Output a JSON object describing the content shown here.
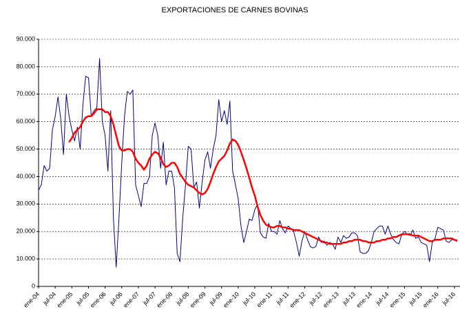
{
  "chart_data": {
    "type": "line",
    "title": "EXPORTACIONES DE CARNES BOVINAS",
    "categories": [
      "ene-04",
      null,
      null,
      null,
      null,
      null,
      "jul-04",
      null,
      null,
      null,
      null,
      null,
      "ene-05",
      null,
      null,
      null,
      null,
      null,
      "jul-05",
      null,
      null,
      null,
      null,
      null,
      "ene-06",
      null,
      null,
      null,
      null,
      null,
      "jul-06",
      null,
      null,
      null,
      null,
      null,
      "ene-07",
      null,
      null,
      null,
      null,
      null,
      "jul-07",
      null,
      null,
      null,
      null,
      null,
      "ene-08",
      null,
      null,
      null,
      null,
      null,
      "jul-08",
      null,
      null,
      null,
      null,
      null,
      "ene-09",
      null,
      null,
      null,
      null,
      null,
      "jul-09",
      null,
      null,
      null,
      null,
      null,
      "ene-10",
      null,
      null,
      null,
      null,
      null,
      "jul-10",
      null,
      null,
      null,
      null,
      null,
      "ene-11",
      null,
      null,
      null,
      null,
      null,
      "jul-11",
      null,
      null,
      null,
      null,
      null,
      "ene-12",
      null,
      null,
      null,
      null,
      null,
      "jul-12",
      null,
      null,
      null,
      null,
      null,
      "ene-13",
      null,
      null,
      null,
      null,
      null,
      "jul-13",
      null,
      null,
      null,
      null,
      null,
      "ene-14",
      null,
      null,
      null,
      null,
      null,
      "jul-14",
      null,
      null,
      null,
      null,
      null,
      "ene-15",
      null,
      null,
      null,
      null,
      null,
      "jul-15",
      null,
      null,
      null,
      null,
      null,
      "ene-16",
      null,
      null,
      null,
      null,
      null,
      "jul-16",
      null
    ],
    "series": [
      {
        "color": "#000080",
        "width": 1,
        "values": [
          35000,
          37000,
          44000,
          42000,
          43000,
          57000,
          62000,
          69000,
          61000,
          48000,
          70000,
          62000,
          57000,
          53000,
          58000,
          50000,
          66000,
          76500,
          76000,
          62000,
          64000,
          65000,
          83000,
          60000,
          55000,
          42000,
          64000,
          25000,
          7000,
          25000,
          45000,
          62000,
          71000,
          70000,
          71500,
          37000,
          33000,
          29000,
          37500,
          37500,
          40000,
          55000,
          59500,
          55000,
          43000,
          52500,
          37000,
          42000,
          42000,
          36000,
          12000,
          9000,
          25000,
          37000,
          51000,
          50000,
          36000,
          38000,
          28500,
          38000,
          46000,
          49000,
          43000,
          50000,
          55000,
          68000,
          60000,
          64000,
          59000,
          67500,
          42000,
          37000,
          32000,
          22000,
          16000,
          20000,
          24500,
          24000,
          28000,
          30000,
          19500,
          18000,
          17500,
          23000,
          20000,
          20000,
          19000,
          24000,
          21000,
          19500,
          22000,
          21000,
          20000,
          16000,
          11000,
          16500,
          20000,
          17000,
          14500,
          14000,
          14500,
          18000,
          16000,
          16500,
          15000,
          16000,
          15500,
          13500,
          18000,
          16000,
          18500,
          17500,
          18000,
          19500,
          19500,
          18500,
          12500,
          12000,
          12000,
          13000,
          16000,
          20000,
          21000,
          22000,
          22000,
          19000,
          22000,
          19000,
          17000,
          16000,
          15500,
          19000,
          20000,
          19000,
          18500,
          20500,
          17500,
          18000,
          16000,
          15500,
          15000,
          9000,
          16000,
          17500,
          21500,
          21000,
          20500,
          16500,
          16000,
          17000,
          17000,
          17000
        ]
      },
      {
        "color": "#ff0000",
        "width": 2.5,
        "values": [
          null,
          null,
          null,
          null,
          null,
          null,
          null,
          null,
          null,
          null,
          null,
          52500,
          54000,
          56000,
          57000,
          58000,
          60000,
          61500,
          62000,
          62000,
          63000,
          64500,
          64500,
          64500,
          63500,
          63500,
          62000,
          59000,
          55000,
          51000,
          49500,
          49500,
          50000,
          50000,
          49000,
          46500,
          45000,
          44000,
          42500,
          44000,
          46500,
          48000,
          49000,
          48500,
          47000,
          44500,
          43500,
          44000,
          45000,
          45000,
          43500,
          41000,
          39500,
          38000,
          37000,
          36500,
          36000,
          35000,
          34000,
          33500,
          34000,
          35500,
          38000,
          41000,
          43500,
          45500,
          46500,
          47500,
          49500,
          52000,
          53500,
          53000,
          51500,
          49000,
          46000,
          43000,
          39500,
          36000,
          33000,
          29000,
          26000,
          24000,
          22500,
          22000,
          21500,
          21500,
          22000,
          22000,
          21500,
          21500,
          21000,
          21000,
          20500,
          20500,
          20500,
          20000,
          19500,
          19000,
          18500,
          18000,
          17500,
          17000,
          16500,
          16000,
          16000,
          15500,
          15500,
          15500,
          15500,
          15500,
          16000,
          16000,
          16500,
          16500,
          17000,
          17000,
          17000,
          16500,
          16500,
          16000,
          16000,
          16000,
          16500,
          16500,
          17000,
          17000,
          17500,
          17500,
          18000,
          18000,
          18500,
          19000,
          19000,
          19000,
          19000,
          18500,
          18500,
          18500,
          18000,
          17500,
          17000,
          16500,
          16500,
          17000,
          17000,
          17000,
          17500,
          17500,
          17500,
          17500,
          17000,
          16500
        ]
      }
    ],
    "ylim": [
      0,
      90000
    ],
    "yticks": [
      0,
      {
        "value": 10000,
        "label": "10.000"
      },
      {
        "value": 20000,
        "label": "20.000"
      },
      {
        "value": 30000,
        "label": "30.000"
      },
      {
        "value": 40000,
        "label": "40.000"
      },
      {
        "value": 50000,
        "label": "50.000"
      },
      {
        "value": 60000,
        "label": "60.000"
      },
      {
        "value": 70000,
        "label": "70.000"
      },
      {
        "value": 80000,
        "label": "80.000"
      },
      {
        "value": 90000,
        "label": "90.000"
      }
    ],
    "grid": true
  }
}
